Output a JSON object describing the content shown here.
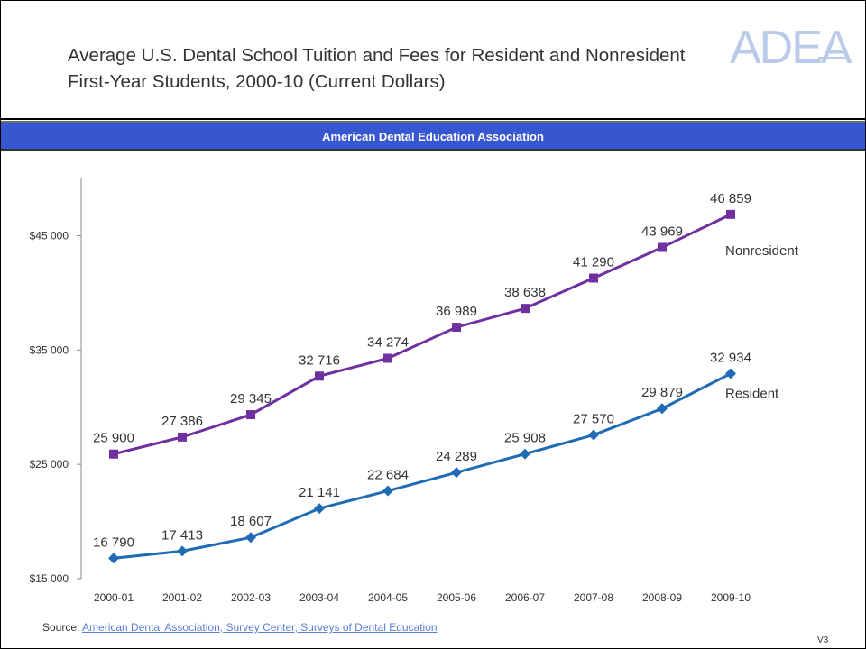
{
  "header": {
    "title": "Average U.S. Dental School Tuition and Fees for Resident and Nonresident First-Year Students, 2000-10 (Current Dollars)",
    "logo_text": "ADEA"
  },
  "banner": {
    "text": "American Dental Education Association"
  },
  "footer": {
    "source_label": "Source:",
    "source_link": "American Dental Association, Survey Center, Surveys of Dental Education",
    "version": "V3"
  },
  "colors": {
    "nonresident": "#7030a0",
    "resident": "#1f6cb4",
    "banner": "#3757d0",
    "logo": "#b9cbe8"
  },
  "chart_data": {
    "type": "line",
    "title": "",
    "xlabel": "",
    "ylabel": "",
    "categories": [
      "2000-01",
      "2001-02",
      "2002-03",
      "2003-04",
      "2004-05",
      "2005-06",
      "2006-07",
      "2007-08",
      "2008-09",
      "2009-10"
    ],
    "ylim": [
      15000,
      50000
    ],
    "yticks": [
      15000,
      25000,
      35000,
      45000
    ],
    "ytick_labels": [
      "$15 000",
      "$25 000",
      "$35 000",
      "$45 000"
    ],
    "grid": false,
    "series": [
      {
        "name": "Nonresident",
        "color": "#7030a0",
        "marker": "square",
        "values": [
          25900,
          27386,
          29345,
          32716,
          34274,
          36989,
          38638,
          41290,
          43969,
          46859
        ],
        "labels": [
          "25 900",
          "27 386",
          "29 345",
          "32 716",
          "34 274",
          "36 989",
          "38 638",
          "41 290",
          "43 969",
          "46 859"
        ]
      },
      {
        "name": "Resident",
        "color": "#1f6cb4",
        "marker": "diamond",
        "values": [
          16790,
          17413,
          18607,
          21141,
          22684,
          24289,
          25908,
          27570,
          29879,
          32934
        ],
        "labels": [
          "16 790",
          "17 413",
          "18 607",
          "21 141",
          "22 684",
          "24 289",
          "25 908",
          "27 570",
          "29 879",
          "32 934"
        ]
      }
    ]
  }
}
